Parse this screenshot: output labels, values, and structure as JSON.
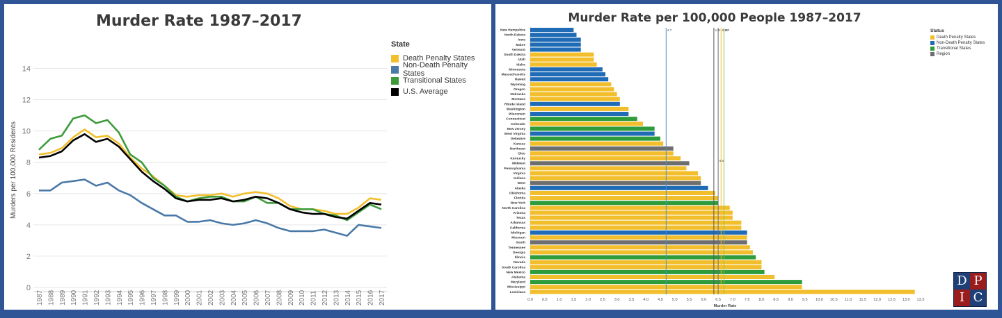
{
  "left": {
    "title": "Murder Rate 1987–2017",
    "legend_title": "State",
    "chart_data": {
      "type": "line",
      "title": "Murder Rate 1987–2017",
      "ylabel": "Murders per 100,000 Residents",
      "xlabel": "",
      "ylim": [
        0,
        15
      ],
      "yticks": [
        0,
        2,
        4,
        6,
        8,
        10,
        12,
        14
      ],
      "x": [
        "1987",
        "1988",
        "1989",
        "1990",
        "1991",
        "1992",
        "1993",
        "1994",
        "1995",
        "1996",
        "1997",
        "1998",
        "1999",
        "2000",
        "2001",
        "2002",
        "2003",
        "2004",
        "2005",
        "2006",
        "2007",
        "2008",
        "2009",
        "2010",
        "2011",
        "2012",
        "2013",
        "2014",
        "2015",
        "2016",
        "2017"
      ],
      "grid": true,
      "legend": "right",
      "series": [
        {
          "name": "Death Penalty States",
          "color": "#f2be2c",
          "values": [
            8.5,
            8.6,
            8.9,
            9.6,
            10.1,
            9.6,
            9.7,
            9.2,
            8.3,
            7.6,
            7.1,
            6.5,
            5.9,
            5.8,
            5.9,
            5.9,
            6.0,
            5.8,
            6.0,
            6.1,
            6.0,
            5.7,
            5.2,
            5.0,
            5.0,
            4.9,
            4.7,
            4.7,
            5.1,
            5.7,
            5.6
          ]
        },
        {
          "name": "Non-Death Penalty States",
          "color": "#4a79a8",
          "values": [
            6.2,
            6.2,
            6.7,
            6.8,
            6.9,
            6.5,
            6.7,
            6.2,
            5.9,
            5.4,
            5.0,
            4.6,
            4.6,
            4.2,
            4.2,
            4.3,
            4.1,
            4.0,
            4.1,
            4.3,
            4.1,
            3.8,
            3.6,
            3.6,
            3.6,
            3.7,
            3.5,
            3.3,
            4.0,
            3.9,
            3.8
          ]
        },
        {
          "name": "Transitional States",
          "color": "#3e9b3c",
          "values": [
            8.8,
            9.5,
            9.7,
            10.8,
            11.0,
            10.5,
            10.7,
            9.9,
            8.5,
            8.0,
            7.0,
            6.5,
            5.8,
            5.5,
            5.7,
            5.8,
            5.8,
            5.5,
            5.5,
            5.8,
            5.4,
            5.4,
            5.0,
            5.0,
            5.0,
            4.7,
            4.6,
            4.3,
            4.8,
            5.3,
            5.0
          ]
        },
        {
          "name": "U.S. Average",
          "color": "#000000",
          "values": [
            8.3,
            8.4,
            8.7,
            9.4,
            9.8,
            9.3,
            9.5,
            9.0,
            8.2,
            7.4,
            6.8,
            6.3,
            5.7,
            5.5,
            5.6,
            5.6,
            5.7,
            5.5,
            5.6,
            5.8,
            5.7,
            5.4,
            5.0,
            4.8,
            4.7,
            4.7,
            4.5,
            4.4,
            4.9,
            5.4,
            5.3
          ]
        }
      ]
    }
  },
  "right": {
    "title": "Murder Rate per 100,000 People 1987–2017",
    "legend_title": "Status",
    "chart_data": {
      "type": "bar",
      "orientation": "horizontal",
      "title": "Murder Rate per 100,000 People 1987–2017",
      "xlabel": "Murder Rate",
      "xlim": [
        0,
        13.5
      ],
      "xticks": [
        "0.0",
        "0.5",
        "1.0",
        "1.5",
        "2.0",
        "2.5",
        "3.0",
        "3.5",
        "4.0",
        "4.5",
        "5.0",
        "5.5",
        "6.0",
        "6.5",
        "7.0",
        "7.5",
        "8.0",
        "8.5",
        "9.0",
        "9.5",
        "10.0",
        "10.5",
        "11.0",
        "11.5",
        "12.0",
        "12.5",
        "13.0",
        "13.5"
      ],
      "legend": "top-right",
      "status_colors": {
        "Death Penalty States": "#f2be2c",
        "Non-Death Penalty States": "#1f6bb5",
        "Transitional States": "#2e9c3a",
        "Region": "#6e6e6e"
      },
      "reference_lines": [
        {
          "label": "4.7",
          "value": 4.7,
          "color": "#4a90c8"
        },
        {
          "label": "U.S. 6.35",
          "value": 6.35,
          "color": "#555555"
        },
        {
          "label": "6.7",
          "value": 6.7,
          "color": "#8cc63f"
        },
        {
          "label": "",
          "value": 6.6,
          "color": "#f2be2c"
        },
        {
          "label": "6.5",
          "value": 6.5,
          "color": "#6e6e6e"
        }
      ],
      "categories": [
        "New Hampshire",
        "North Dakota",
        "Iowa",
        "Maine",
        "Vermont",
        "South Dakota",
        "Utah",
        "Idaho",
        "Minnesota",
        "Massachusetts",
        "Hawaii",
        "Wyoming",
        "Oregon",
        "Nebraska",
        "Montana",
        "Rhode Island",
        "Washington",
        "Wisconsin",
        "Connecticut",
        "Colorado",
        "New Jersey",
        "West Virginia",
        "Delaware",
        "Kansas",
        "Northeast",
        "Ohio",
        "Kentucky",
        "Midwest",
        "Pennsylvania",
        "Virginia",
        "Indiana",
        "West",
        "Alaska",
        "Oklahoma",
        "Florida",
        "New York",
        "North Carolina",
        "Arizona",
        "Texas",
        "Arkansas",
        "California",
        "Michigan",
        "Missouri",
        "South",
        "Tennessee",
        "Georgia",
        "Illinois",
        "Nevada",
        "South Carolina",
        "New Mexico",
        "Alabama",
        "Maryland",
        "Mississippi",
        "Louisiana"
      ],
      "values": [
        1.5,
        1.6,
        1.75,
        1.75,
        1.75,
        2.2,
        2.2,
        2.3,
        2.5,
        2.6,
        2.7,
        2.8,
        2.9,
        3.0,
        3.1,
        3.1,
        3.4,
        3.4,
        3.7,
        3.9,
        4.3,
        4.3,
        4.5,
        4.6,
        4.95,
        4.95,
        5.2,
        5.5,
        5.4,
        5.8,
        5.9,
        5.9,
        6.15,
        6.4,
        6.5,
        6.5,
        6.9,
        7.0,
        7.0,
        7.3,
        7.3,
        7.5,
        7.5,
        7.5,
        7.6,
        7.7,
        7.8,
        8.0,
        8.0,
        8.1,
        8.45,
        9.4,
        9.4,
        13.3
      ],
      "status": [
        "Non-Death Penalty States",
        "Non-Death Penalty States",
        "Non-Death Penalty States",
        "Non-Death Penalty States",
        "Non-Death Penalty States",
        "Death Penalty States",
        "Death Penalty States",
        "Death Penalty States",
        "Non-Death Penalty States",
        "Non-Death Penalty States",
        "Non-Death Penalty States",
        "Death Penalty States",
        "Death Penalty States",
        "Death Penalty States",
        "Death Penalty States",
        "Non-Death Penalty States",
        "Death Penalty States",
        "Non-Death Penalty States",
        "Transitional States",
        "Death Penalty States",
        "Transitional States",
        "Non-Death Penalty States",
        "Transitional States",
        "Death Penalty States",
        "Region",
        "Death Penalty States",
        "Death Penalty States",
        "Region",
        "Death Penalty States",
        "Death Penalty States",
        "Death Penalty States",
        "Region",
        "Non-Death Penalty States",
        "Death Penalty States",
        "Death Penalty States",
        "Transitional States",
        "Death Penalty States",
        "Death Penalty States",
        "Death Penalty States",
        "Death Penalty States",
        "Death Penalty States",
        "Non-Death Penalty States",
        "Death Penalty States",
        "Region",
        "Death Penalty States",
        "Death Penalty States",
        "Transitional States",
        "Death Penalty States",
        "Death Penalty States",
        "Transitional States",
        "Death Penalty States",
        "Transitional States",
        "Death Penalty States",
        "Death Penalty States"
      ]
    }
  },
  "logo": {
    "letters": [
      "D",
      "P",
      "I",
      "C"
    ]
  }
}
